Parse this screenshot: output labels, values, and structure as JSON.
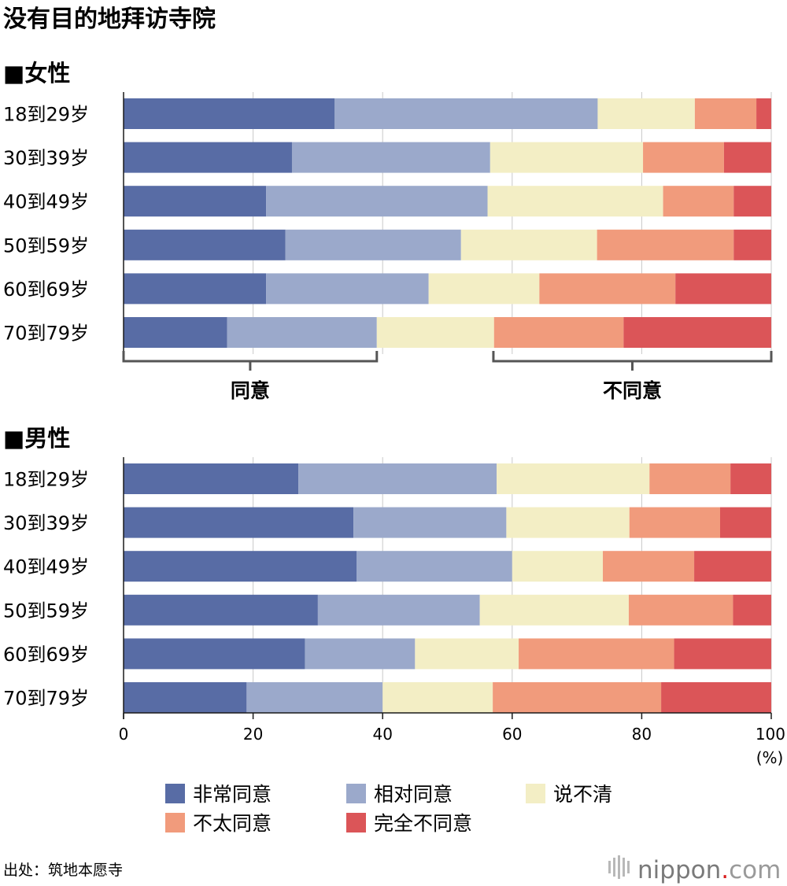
{
  "chart_data": {
    "type": "bar",
    "orientation": "horizontal",
    "stacked": true,
    "title": "没有目的地拜访寺院",
    "categories": [
      "18到29岁",
      "30到39岁",
      "40到49岁",
      "50到59岁",
      "60到69岁",
      "70到79岁"
    ],
    "series_names": [
      "非常同意",
      "相对同意",
      "说不清",
      "不太同意",
      "完全不同意"
    ],
    "series_colors": [
      "#586ca5",
      "#9ba9cb",
      "#f3eec5",
      "#f19b7c",
      "#db5558"
    ],
    "panels": [
      {
        "name": "■女性",
        "values": [
          [
            32.6,
            40.6,
            15.0,
            9.5,
            2.3
          ],
          [
            26.0,
            30.6,
            23.6,
            12.5,
            7.3
          ],
          [
            22.0,
            34.2,
            27.1,
            10.9,
            5.8
          ],
          [
            25.0,
            27.1,
            21.0,
            21.1,
            5.8
          ],
          [
            22.0,
            25.1,
            17.1,
            21.0,
            14.8
          ],
          [
            16.0,
            23.1,
            18.1,
            20.0,
            22.8
          ]
        ]
      },
      {
        "name": "■男性",
        "values": [
          [
            27.0,
            30.6,
            23.6,
            12.5,
            6.3
          ],
          [
            35.5,
            23.6,
            19.0,
            14.0,
            7.9
          ],
          [
            36.0,
            24.0,
            14.0,
            14.1,
            11.9
          ],
          [
            30.0,
            25.0,
            23.0,
            16.1,
            5.9
          ],
          [
            28.0,
            17.0,
            16.0,
            24.0,
            15.0
          ],
          [
            19.0,
            21.0,
            17.0,
            26.0,
            17.0
          ]
        ]
      }
    ],
    "xaxis": {
      "min": 0,
      "max": 100,
      "ticks": [
        "0",
        "20",
        "40",
        "60",
        "80",
        "100"
      ],
      "unit": "(%)"
    },
    "grid": true,
    "brackets": [
      {
        "label": "同意",
        "from": 0,
        "to": 39.1
      },
      {
        "label": "不同意",
        "from": 57.1,
        "to": 100
      }
    ],
    "legend": {
      "position": "bottom"
    },
    "source": "出处：筑地本愿寺",
    "brand": {
      "name": "nippon",
      "dot": ".",
      "suffix": "com"
    }
  }
}
